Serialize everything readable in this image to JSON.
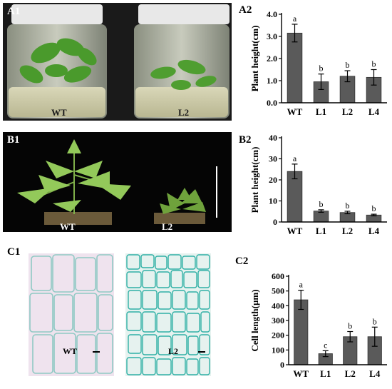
{
  "panels": {
    "a1": {
      "label": "A1",
      "left_text": "WT",
      "right_text": "L2"
    },
    "a2": {
      "label": "A2"
    },
    "b1": {
      "label": "B1",
      "left_text": "WT",
      "right_text": "L2"
    },
    "b2": {
      "label": "B2"
    },
    "c1": {
      "label": "C1",
      "left_text": "WT",
      "right_text": "L2"
    },
    "c2": {
      "label": "C2"
    }
  },
  "colors": {
    "bar": "#5a5a5a",
    "axis": "#000000"
  },
  "chart_data": [
    {
      "id": "a2",
      "type": "bar",
      "categories": [
        "WT",
        "L1",
        "L2",
        "L4"
      ],
      "values": [
        3.15,
        0.95,
        1.2,
        1.15
      ],
      "errors": [
        0.4,
        0.35,
        0.25,
        0.35
      ],
      "letters": [
        "a",
        "b",
        "b",
        "b"
      ],
      "ylabel": "Plant height(cm)",
      "ylim": [
        0,
        4
      ],
      "yticks": [
        "0.0",
        "1.0",
        "2.0",
        "3.0",
        "4.0"
      ]
    },
    {
      "id": "b2",
      "type": "bar",
      "categories": [
        "WT",
        "L1",
        "L2",
        "L4"
      ],
      "values": [
        24,
        5.2,
        4.5,
        3.3
      ],
      "errors": [
        3.5,
        0.6,
        0.6,
        0.4
      ],
      "letters": [
        "a",
        "b",
        "b",
        "b"
      ],
      "ylabel": "Plant height(cm)",
      "ylim": [
        0,
        40
      ],
      "yticks": [
        "0",
        "10",
        "20",
        "30",
        "40"
      ]
    },
    {
      "id": "c2",
      "type": "bar",
      "categories": [
        "WT",
        "L1",
        "L2",
        "L4"
      ],
      "values": [
        440,
        75,
        190,
        190
      ],
      "errors": [
        65,
        20,
        35,
        65
      ],
      "letters": [
        "a",
        "c",
        "b",
        "b"
      ],
      "ylabel": "Cell length(µm)",
      "ylim": [
        0,
        600
      ],
      "yticks": [
        "0",
        "100",
        "200",
        "300",
        "400",
        "500",
        "600"
      ]
    }
  ]
}
